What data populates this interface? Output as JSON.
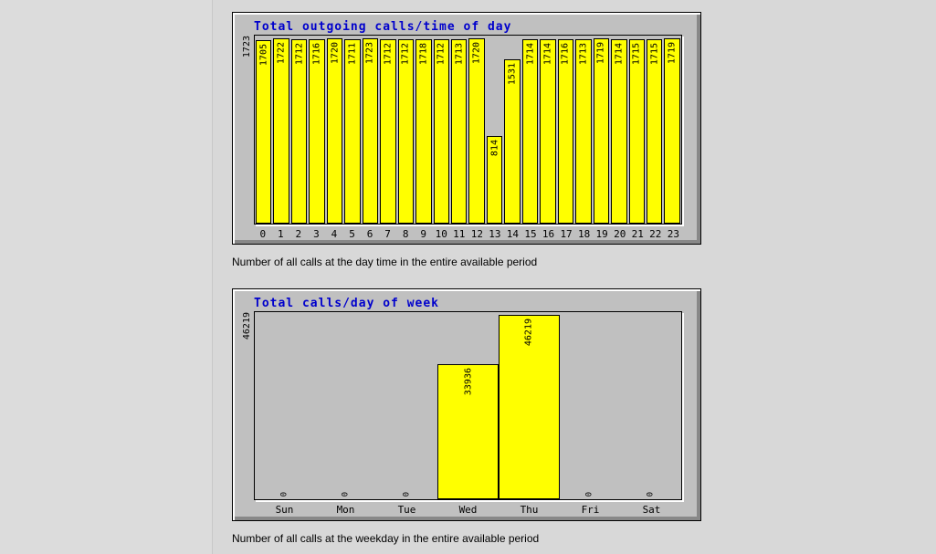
{
  "page": {
    "background": "#dcdcdc",
    "content_background": "#d8d8d8",
    "panel_color": "#c0c0c0",
    "title_color": "#0000cc",
    "bar_color": "#ffff00"
  },
  "chart_data": [
    {
      "type": "bar",
      "title": "Total outgoing calls/time of day",
      "caption": "Number of all calls at the day time in the entire available period",
      "y_axis_max_label": "1723",
      "categories": [
        "0",
        "1",
        "2",
        "3",
        "4",
        "5",
        "6",
        "7",
        "8",
        "9",
        "10",
        "11",
        "12",
        "13",
        "14",
        "15",
        "16",
        "17",
        "18",
        "19",
        "20",
        "21",
        "22",
        "23"
      ],
      "values": [
        1705,
        1722,
        1712,
        1716,
        1720,
        1711,
        1723,
        1712,
        1712,
        1718,
        1712,
        1713,
        1720,
        814,
        1531,
        1714,
        1714,
        1716,
        1713,
        1719,
        1714,
        1715,
        1715,
        1719
      ],
      "ylim": [
        0,
        1723
      ],
      "xlabel": "",
      "ylabel": "",
      "grid": false,
      "legend": false,
      "bar_color": "#ffff00",
      "value_label_style": "rotated-90-inside-bar-top",
      "bar_gap": true
    },
    {
      "type": "bar",
      "title": "Total calls/day of week",
      "caption": "Number of all calls at the weekday in the entire available period",
      "y_axis_max_label": "46219",
      "categories": [
        "Sun",
        "Mon",
        "Tue",
        "Wed",
        "Thu",
        "Fri",
        "Sat"
      ],
      "values": [
        0,
        0,
        0,
        33936,
        46219,
        0,
        0
      ],
      "ylim": [
        0,
        46219
      ],
      "xlabel": "",
      "ylabel": "",
      "grid": false,
      "legend": false,
      "bar_color": "#ffff00",
      "value_label_style": "rotated-90-inside-bar-top",
      "zero_label_style": "rotated-0-above-baseline",
      "bar_gap": false
    }
  ]
}
